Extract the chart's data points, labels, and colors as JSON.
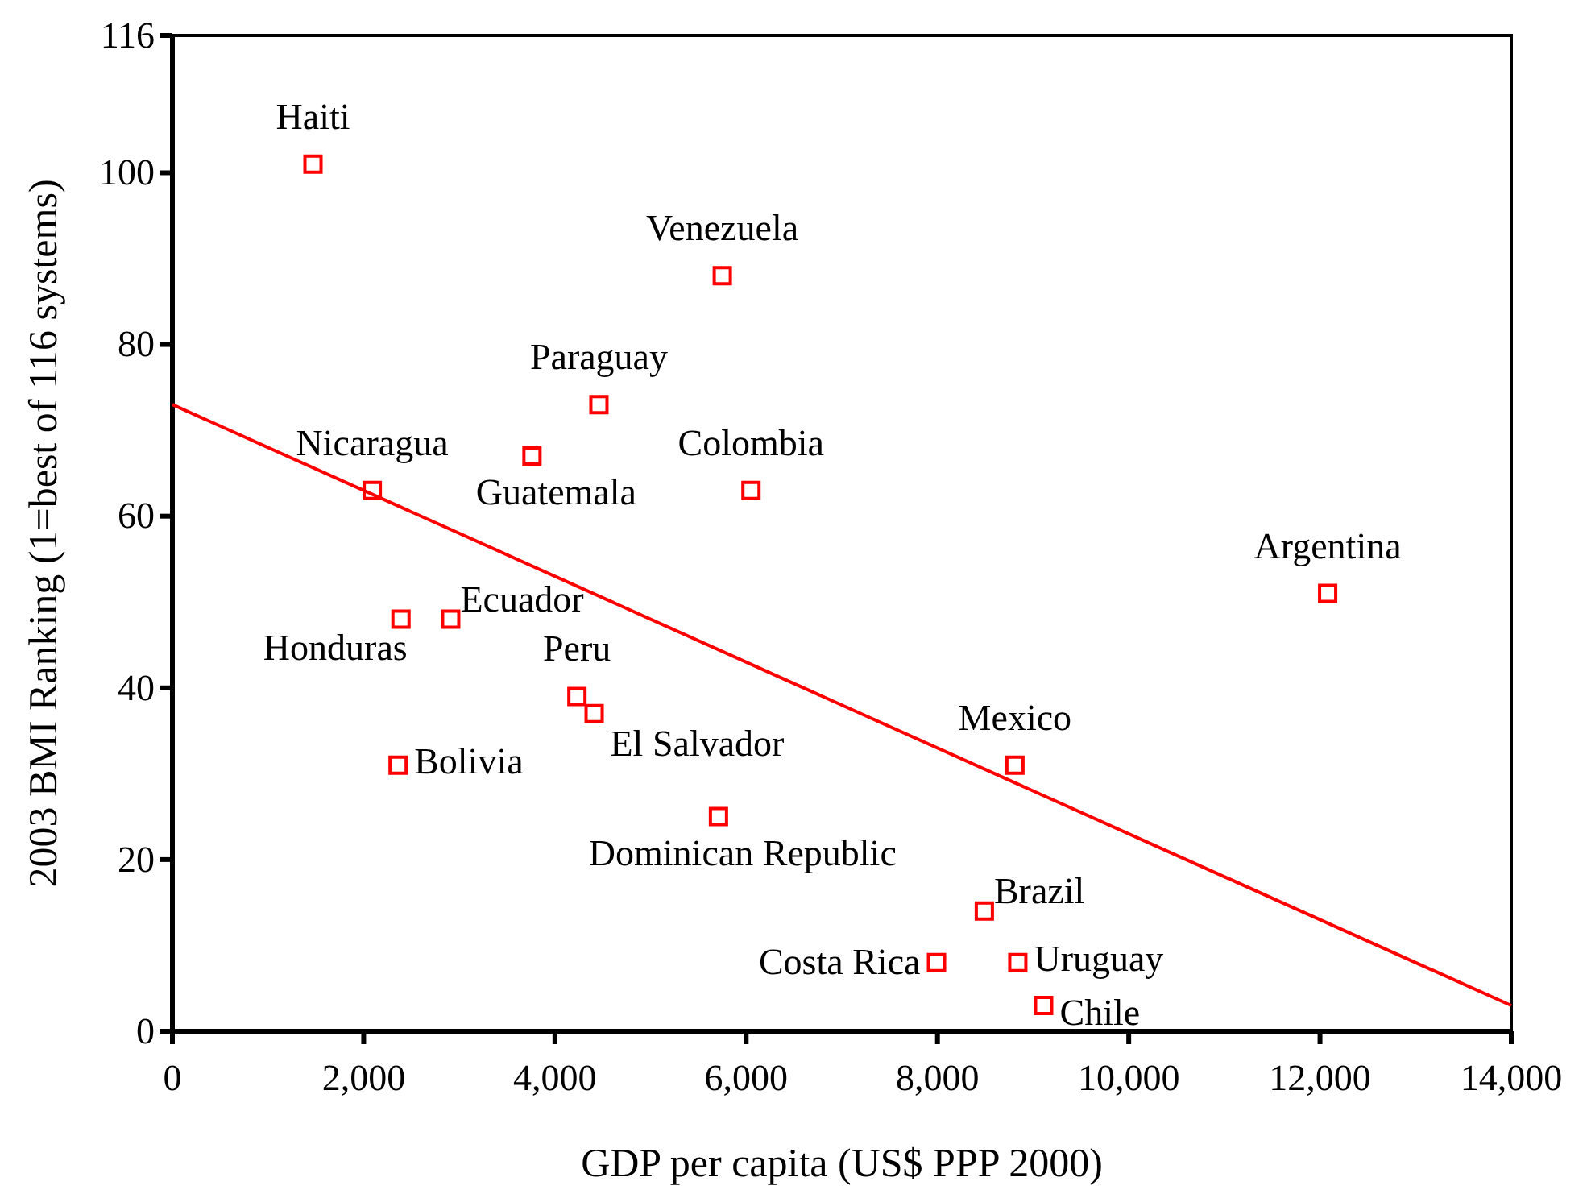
{
  "chart_data": {
    "type": "scatter",
    "xlabel": "GDP per capita (US$ PPP 2000)",
    "ylabel": "2003 BMI Ranking (1=best of 116 systems)",
    "xlim": [
      0,
      14000
    ],
    "xticks": [
      {
        "value": 0,
        "label": "0"
      },
      {
        "value": 2000,
        "label": "2,000"
      },
      {
        "value": 4000,
        "label": "4,000"
      },
      {
        "value": 6000,
        "label": "6,000"
      },
      {
        "value": 8000,
        "label": "8,000"
      },
      {
        "value": 10000,
        "label": "10,000"
      },
      {
        "value": 12000,
        "label": "12,000"
      },
      {
        "value": 14000,
        "label": "14,000"
      }
    ],
    "ylim": [
      0,
      116
    ],
    "yticks": [
      0,
      20,
      40,
      60,
      80,
      100,
      116
    ],
    "grid": false,
    "marker": "square",
    "series": [
      {
        "color": "#ff0000",
        "x": [
          1470,
          5750,
          4460,
          3760,
          2090,
          6050,
          12080,
          2390,
          2910,
          4230,
          4410,
          2360,
          8810,
          5710,
          8490,
          7990,
          8840,
          9110
        ],
        "values": [
          101,
          88,
          73,
          67,
          63,
          63,
          51,
          48,
          48,
          39,
          37,
          31,
          31,
          25,
          14,
          8,
          8,
          3
        ]
      },
      {
        "type": "line",
        "color": "#ff0000",
        "marker": "none",
        "x": [
          0,
          14000
        ],
        "values": [
          73,
          3
        ]
      }
    ],
    "annotations": [
      {
        "text": "Haiti",
        "x": 1470,
        "y": 101
      },
      {
        "text": "Venezuela",
        "x": 5750,
        "y": 88
      },
      {
        "text": "Paraguay",
        "x": 4460,
        "y": 73
      },
      {
        "text": "Guatemala",
        "x": 3760,
        "y": 67
      },
      {
        "text": "Nicaragua",
        "x": 2090,
        "y": 63
      },
      {
        "text": "Colombia",
        "x": 6050,
        "y": 63
      },
      {
        "text": "Argentina",
        "x": 12080,
        "y": 51
      },
      {
        "text": "Honduras",
        "x": 2390,
        "y": 48
      },
      {
        "text": "Ecuador",
        "x": 2910,
        "y": 48
      },
      {
        "text": "Peru",
        "x": 4230,
        "y": 39
      },
      {
        "text": "El Salvador",
        "x": 4410,
        "y": 37
      },
      {
        "text": "Bolivia",
        "x": 2360,
        "y": 31
      },
      {
        "text": "Mexico",
        "x": 8810,
        "y": 31
      },
      {
        "text": "Dominican Republic",
        "x": 5710,
        "y": 25
      },
      {
        "text": "Brazil",
        "x": 8490,
        "y": 14
      },
      {
        "text": "Costa Rica",
        "x": 7990,
        "y": 8
      },
      {
        "text": "Uruguay",
        "x": 8840,
        "y": 8
      },
      {
        "text": "Chile",
        "x": 9110,
        "y": 3
      }
    ]
  }
}
